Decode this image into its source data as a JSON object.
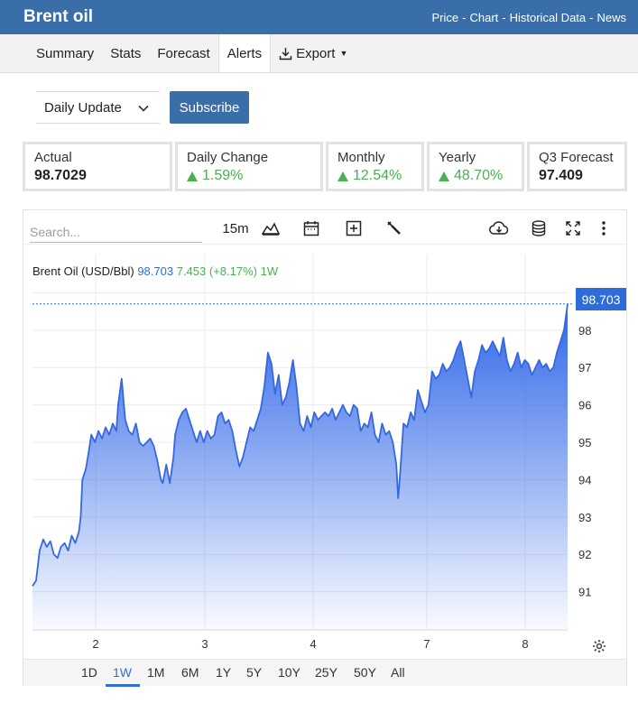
{
  "header": {
    "title": "Brent oil",
    "links": [
      "Price",
      "Chart",
      "Historical Data",
      "News"
    ]
  },
  "nav": {
    "tabs": [
      "Summary",
      "Stats",
      "Forecast",
      "Alerts"
    ],
    "active": "Alerts",
    "export_label": "Export"
  },
  "alerts": {
    "frequency": "Daily Update",
    "subscribe_label": "Subscribe"
  },
  "stats": [
    {
      "label": "Actual",
      "value": "98.7029",
      "trend": "none"
    },
    {
      "label": "Daily Change",
      "value": "1.59%",
      "trend": "up"
    },
    {
      "label": "Monthly",
      "value": "12.54%",
      "trend": "up"
    },
    {
      "label": "Yearly",
      "value": "48.70%",
      "trend": "up"
    },
    {
      "label": "Q3 Forecast",
      "value": "97.409",
      "trend": "none"
    }
  ],
  "chart_toolbar": {
    "search_placeholder": "Search...",
    "interval": "15m",
    "icons": [
      "mountain-chart-icon",
      "calendar-icon",
      "add-box-icon",
      "wrench-icon",
      "cloud-download-icon",
      "database-icon",
      "fullscreen-icon",
      "more-vertical-icon"
    ]
  },
  "legend": {
    "symbol": "Brent Oil (USD/Bbl)",
    "last": "98.703",
    "change": "7.453 (+8.17%)",
    "period": "1W"
  },
  "last_price_tag": "98.703",
  "ranges": [
    "1D",
    "1W",
    "1M",
    "6M",
    "1Y",
    "5Y",
    "10Y",
    "25Y",
    "50Y",
    "All"
  ],
  "active_range": "1W",
  "colors": {
    "brand": "#3a6ea8",
    "line": "#3568e0",
    "up": "#4caf50",
    "tag": "#2d6cd9"
  },
  "chart_data": {
    "type": "area",
    "xlabel": "",
    "ylabel": "",
    "ylim": [
      90,
      99.3
    ],
    "y_ticks": [
      91,
      92,
      93,
      94,
      95,
      96,
      97,
      98,
      99
    ],
    "x_ticks": [
      "2",
      "3",
      "4",
      "7",
      "8"
    ],
    "grid": true,
    "series": [
      {
        "points": [
          [
            0.0,
            91.15
          ],
          [
            0.02,
            91.3
          ],
          [
            0.04,
            92.1
          ],
          [
            0.06,
            92.4
          ],
          [
            0.08,
            92.2
          ],
          [
            0.1,
            92.35
          ],
          [
            0.12,
            92.0
          ],
          [
            0.14,
            91.9
          ],
          [
            0.16,
            92.2
          ],
          [
            0.18,
            92.3
          ],
          [
            0.2,
            92.1
          ],
          [
            0.22,
            92.5
          ],
          [
            0.24,
            92.3
          ],
          [
            0.26,
            92.6
          ],
          [
            0.27,
            93.0
          ],
          [
            0.28,
            94.0
          ],
          [
            0.3,
            94.3
          ],
          [
            0.32,
            94.9
          ],
          [
            0.33,
            95.2
          ],
          [
            0.35,
            95.0
          ],
          [
            0.37,
            95.3
          ],
          [
            0.39,
            95.1
          ],
          [
            0.41,
            95.4
          ],
          [
            0.43,
            95.2
          ],
          [
            0.45,
            95.5
          ],
          [
            0.47,
            95.3
          ],
          [
            0.48,
            96.0
          ],
          [
            0.5,
            96.7
          ],
          [
            0.52,
            95.6
          ],
          [
            0.54,
            95.3
          ],
          [
            0.56,
            95.2
          ],
          [
            0.58,
            95.5
          ],
          [
            0.6,
            95.0
          ],
          [
            0.62,
            94.9
          ],
          [
            0.64,
            95.0
          ],
          [
            0.66,
            95.1
          ],
          [
            0.68,
            94.9
          ],
          [
            0.7,
            94.5
          ],
          [
            0.72,
            94.0
          ],
          [
            0.73,
            93.9
          ],
          [
            0.75,
            94.4
          ],
          [
            0.77,
            93.9
          ],
          [
            0.79,
            94.6
          ],
          [
            0.8,
            95.2
          ],
          [
            0.82,
            95.6
          ],
          [
            0.84,
            95.8
          ],
          [
            0.86,
            95.9
          ],
          [
            0.88,
            95.6
          ],
          [
            0.9,
            95.3
          ],
          [
            0.92,
            95.0
          ],
          [
            0.94,
            95.3
          ],
          [
            0.96,
            95.0
          ],
          [
            0.98,
            95.3
          ],
          [
            1.0,
            95.1
          ],
          [
            1.02,
            95.2
          ],
          [
            1.04,
            95.7
          ],
          [
            1.06,
            95.8
          ],
          [
            1.08,
            95.5
          ],
          [
            1.1,
            95.6
          ],
          [
            1.12,
            95.3
          ],
          [
            1.14,
            94.8
          ],
          [
            1.16,
            94.35
          ],
          [
            1.18,
            94.6
          ],
          [
            1.2,
            95.0
          ],
          [
            1.22,
            95.4
          ],
          [
            1.24,
            95.3
          ],
          [
            1.26,
            95.6
          ],
          [
            1.28,
            95.9
          ],
          [
            1.3,
            96.5
          ],
          [
            1.32,
            97.4
          ],
          [
            1.34,
            97.1
          ],
          [
            1.36,
            96.3
          ],
          [
            1.38,
            96.8
          ],
          [
            1.4,
            96.0
          ],
          [
            1.42,
            96.2
          ],
          [
            1.44,
            96.6
          ],
          [
            1.46,
            97.2
          ],
          [
            1.48,
            96.5
          ],
          [
            1.5,
            95.5
          ],
          [
            1.52,
            95.3
          ],
          [
            1.54,
            95.7
          ],
          [
            1.56,
            95.4
          ],
          [
            1.58,
            95.8
          ],
          [
            1.6,
            95.6
          ],
          [
            1.62,
            95.7
          ],
          [
            1.64,
            95.8
          ],
          [
            1.66,
            95.7
          ],
          [
            1.68,
            95.9
          ],
          [
            1.7,
            95.6
          ],
          [
            1.72,
            95.8
          ],
          [
            1.74,
            96.0
          ],
          [
            1.76,
            95.8
          ],
          [
            1.78,
            95.7
          ],
          [
            1.8,
            96.0
          ],
          [
            1.82,
            95.9
          ],
          [
            1.84,
            95.3
          ],
          [
            1.86,
            95.5
          ],
          [
            1.88,
            95.4
          ],
          [
            1.9,
            95.8
          ],
          [
            1.92,
            95.2
          ],
          [
            1.94,
            95.0
          ],
          [
            1.96,
            95.5
          ],
          [
            1.98,
            95.2
          ],
          [
            2.0,
            95.3
          ],
          [
            2.02,
            95.0
          ],
          [
            2.04,
            94.4
          ],
          [
            2.05,
            93.5
          ],
          [
            2.06,
            94.1
          ],
          [
            2.08,
            95.5
          ],
          [
            2.1,
            95.4
          ],
          [
            2.12,
            95.8
          ],
          [
            2.14,
            95.6
          ],
          [
            2.16,
            96.4
          ],
          [
            2.18,
            96.1
          ],
          [
            2.2,
            95.8
          ],
          [
            2.22,
            96.0
          ],
          [
            2.24,
            96.9
          ],
          [
            2.26,
            96.7
          ],
          [
            2.28,
            96.8
          ],
          [
            2.3,
            97.1
          ],
          [
            2.32,
            96.9
          ],
          [
            2.34,
            97.0
          ],
          [
            2.36,
            97.2
          ],
          [
            2.38,
            97.5
          ],
          [
            2.4,
            97.7
          ],
          [
            2.42,
            97.2
          ],
          [
            2.44,
            96.7
          ],
          [
            2.46,
            96.2
          ],
          [
            2.48,
            96.9
          ],
          [
            2.5,
            97.2
          ],
          [
            2.52,
            97.6
          ],
          [
            2.54,
            97.4
          ],
          [
            2.56,
            97.5
          ],
          [
            2.58,
            97.7
          ],
          [
            2.6,
            97.5
          ],
          [
            2.62,
            97.3
          ],
          [
            2.64,
            97.8
          ],
          [
            2.66,
            97.2
          ],
          [
            2.68,
            96.9
          ],
          [
            2.7,
            97.1
          ],
          [
            2.72,
            97.4
          ],
          [
            2.74,
            97.0
          ],
          [
            2.76,
            97.2
          ],
          [
            2.78,
            97.1
          ],
          [
            2.8,
            96.8
          ],
          [
            2.82,
            97.0
          ],
          [
            2.84,
            97.2
          ],
          [
            2.86,
            97.0
          ],
          [
            2.88,
            97.1
          ],
          [
            2.9,
            96.9
          ],
          [
            2.92,
            97.0
          ],
          [
            2.94,
            97.4
          ],
          [
            2.96,
            97.7
          ],
          [
            2.98,
            98.0
          ],
          [
            3.0,
            98.703
          ]
        ]
      }
    ]
  }
}
